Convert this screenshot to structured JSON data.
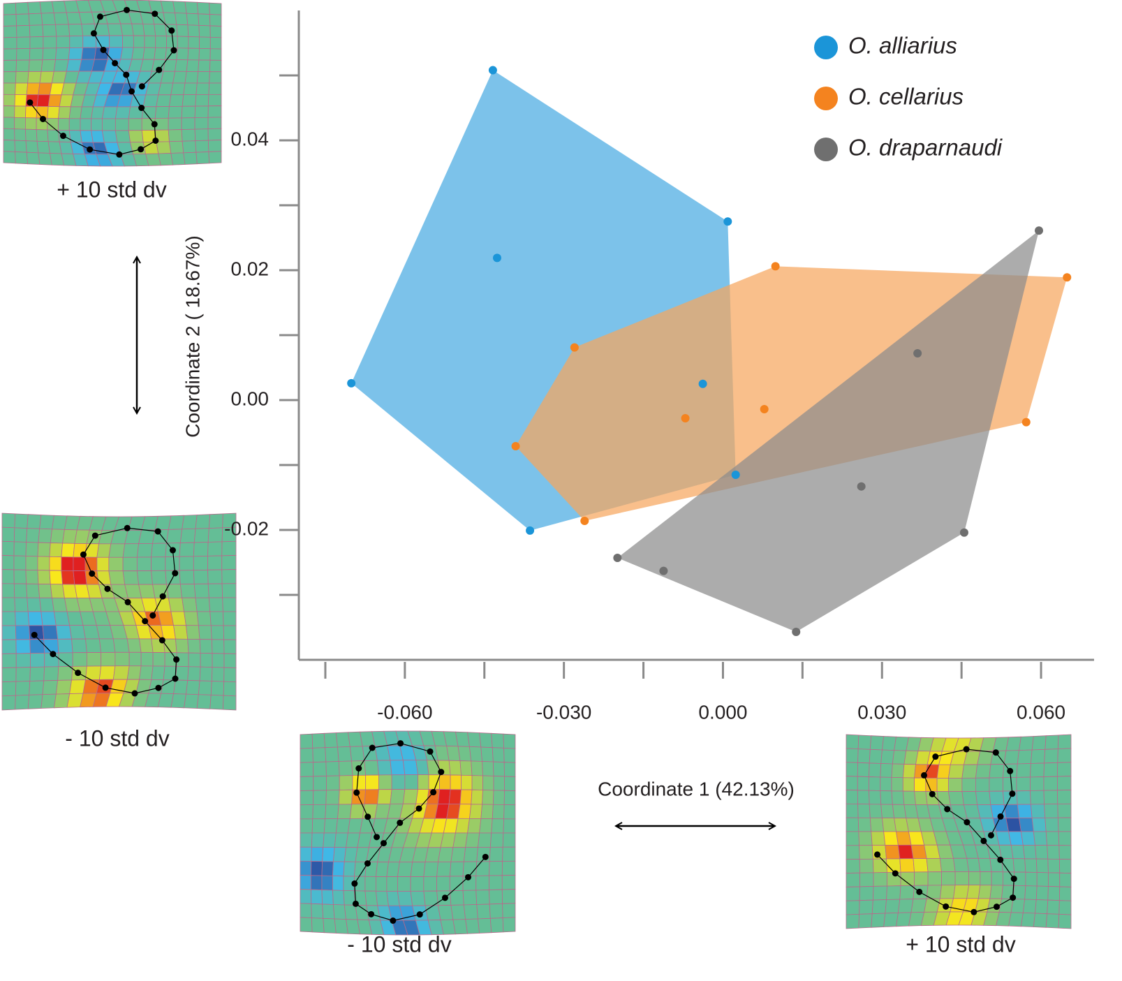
{
  "chart_data": {
    "type": "scatter",
    "xlabel": "Coordinate 1 (42.13%)",
    "ylabel": "Coordinate 2 ( 18.67%)",
    "xlim": [
      -0.08,
      0.07
    ],
    "ylim": [
      -0.04,
      0.06
    ],
    "xticks": [
      {
        "value": -0.06,
        "label": "-0.060"
      },
      {
        "value": -0.03,
        "label": "-0.030"
      },
      {
        "value": 0,
        "label": "0.000"
      },
      {
        "value": 0.03,
        "label": "0.030"
      },
      {
        "value": 0.06,
        "label": "0.060"
      }
    ],
    "xminor_ticks": [
      -0.075,
      -0.045,
      -0.015,
      0.015,
      0.045
    ],
    "yticks": [
      0.04,
      0.02,
      {
        "value": 0,
        "label": "0.00"
      },
      -0.02
    ],
    "yminor_ticks": [
      0.05,
      0.03,
      0.01,
      -0.01,
      -0.03
    ],
    "convex_hulls": true,
    "legend": "upper right",
    "series": [
      {
        "name": "O. alliarius",
        "color": "#1b95d8",
        "hull_color": "#4aaae2",
        "x": [
          -0.0434,
          0.0009,
          -0.0426,
          -0.0701,
          -0.0038,
          0.0024,
          -0.0364
        ],
        "values": [
          0.0508,
          0.0275,
          0.0219,
          0.0026,
          0.0025,
          -0.0115,
          -0.0201
        ]
      },
      {
        "name": "O. cellarius",
        "color": "#f4831f",
        "hull_color": "#f6a65e",
        "x": [
          0.0099,
          0.0649,
          -0.028,
          -0.0071,
          0.0078,
          -0.0391,
          0.0572,
          -0.0261
        ],
        "values": [
          0.0206,
          0.0189,
          0.0081,
          -0.0028,
          -0.0014,
          -0.0071,
          -0.0034,
          -0.0186
        ]
      },
      {
        "name": "O. draparnaudi",
        "color": "#6f6f6f",
        "hull_color": "#8c8c8c",
        "x": [
          0.0596,
          0.0367,
          0.0261,
          0.0455,
          -0.0199,
          -0.0112,
          0.0138
        ],
        "values": [
          0.0261,
          0.0072,
          -0.0133,
          -0.0204,
          -0.0243,
          -0.0263,
          -0.0357
        ]
      }
    ],
    "annotations": [
      "+ 10 std dv",
      "- 10 std dv",
      "- 10 std dv",
      "+ 10 std dv"
    ]
  }
}
